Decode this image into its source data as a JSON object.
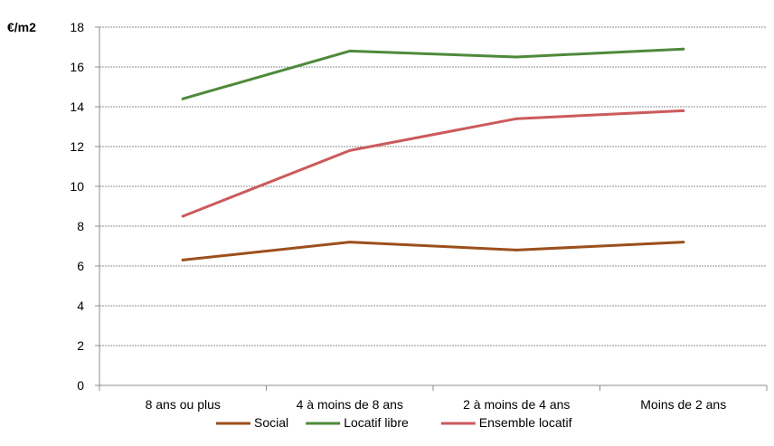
{
  "chart_data": {
    "type": "line",
    "title": "",
    "xlabel": "",
    "ylabel": "€/m2",
    "ylim": [
      0,
      18
    ],
    "yticks": [
      0,
      2,
      4,
      6,
      8,
      10,
      12,
      14,
      16,
      18
    ],
    "grid": true,
    "legend_position": "bottom",
    "categories": [
      "8 ans ou plus",
      "4 à  moins de 8 ans",
      "2 à moins de 4 ans",
      "Moins de 2 ans"
    ],
    "series": [
      {
        "name": "Social",
        "color": "#9c4f1c",
        "values": [
          6.3,
          7.2,
          6.8,
          7.2
        ]
      },
      {
        "name": "Locatif libre",
        "color": "#4e8a3a",
        "values": [
          14.4,
          16.8,
          16.5,
          16.9
        ]
      },
      {
        "name": "Ensemble locatif",
        "color": "#cc5a5c",
        "values": [
          8.5,
          11.8,
          13.4,
          13.8
        ]
      }
    ]
  }
}
